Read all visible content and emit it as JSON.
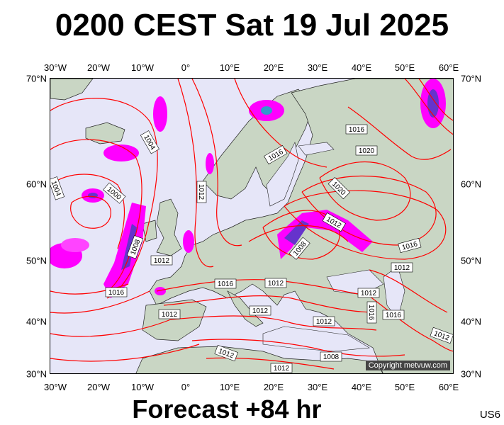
{
  "header": {
    "title": "0200 CEST Sat 19 Jul 2025"
  },
  "footer": {
    "forecast": "Forecast +84 hr",
    "model": "US6"
  },
  "map": {
    "copyright": "Copyright metvuw.com",
    "lon_labels": [
      "30°W",
      "20°W",
      "10°W",
      "0°",
      "10°E",
      "20°E",
      "30°E",
      "40°E",
      "50°E",
      "60°E"
    ],
    "lat_labels": [
      "70°N",
      "60°N",
      "50°N",
      "40°N",
      "30°N"
    ],
    "isobar_labels": [
      "1016",
      "1004",
      "1016",
      "1020",
      "1012",
      "1004",
      "1000",
      "1020",
      "1012",
      "1008",
      "1008",
      "1012",
      "1016",
      "1016",
      "1012",
      "1012",
      "1012",
      "1012",
      "1016",
      "1012",
      "1016",
      "1012",
      "1012",
      "1012",
      "1008",
      "1016",
      "1012"
    ],
    "colors": {
      "isobar": "#ff0000",
      "sea": "#e6e6f8",
      "land": "#c9d6c4",
      "precip": "#ff00ff",
      "precip_core": "#6633cc"
    }
  }
}
